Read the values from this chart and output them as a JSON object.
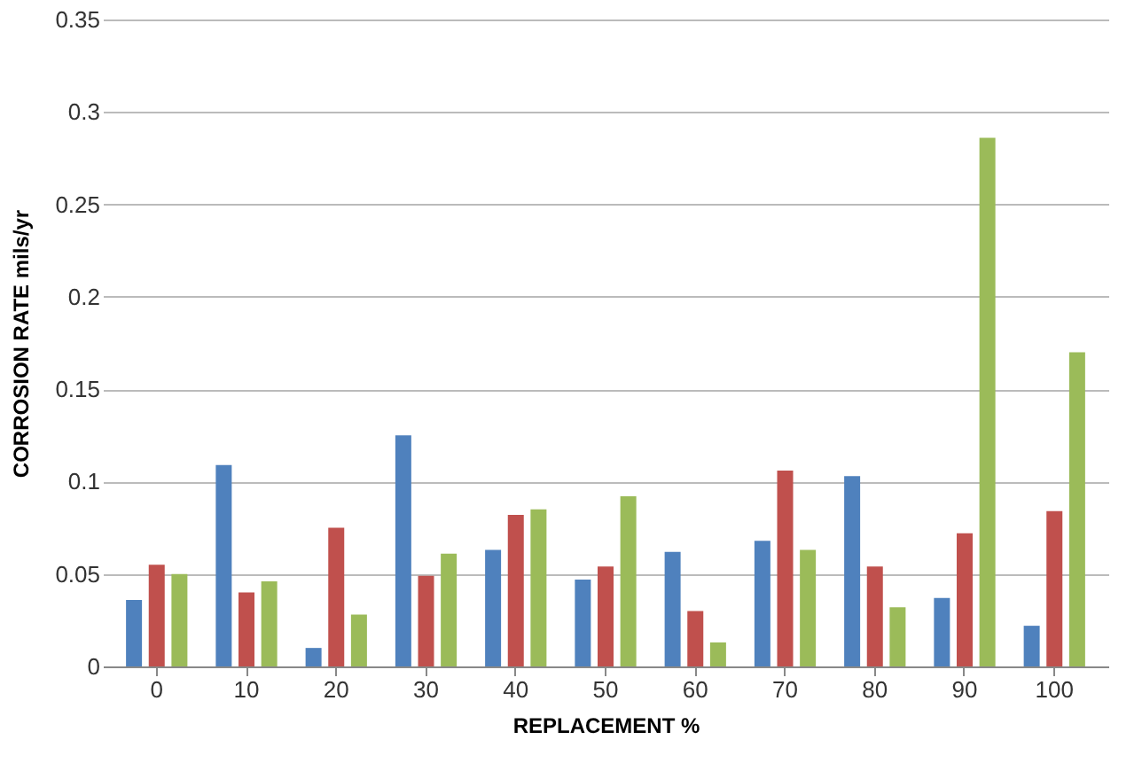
{
  "chart_data": {
    "type": "bar",
    "xlabel": "REPLACEMENT %",
    "ylabel": "CORROSION RATE mils/yr",
    "categories": [
      "0",
      "10",
      "20",
      "30",
      "40",
      "50",
      "60",
      "70",
      "80",
      "90",
      "100"
    ],
    "series": [
      {
        "color": "#4f81bd",
        "values": [
          0.036,
          0.109,
          0.01,
          0.125,
          0.063,
          0.047,
          0.062,
          0.068,
          0.103,
          0.037,
          0.022
        ]
      },
      {
        "color": "#c0504d",
        "values": [
          0.055,
          0.04,
          0.075,
          0.049,
          0.082,
          0.054,
          0.03,
          0.106,
          0.054,
          0.072,
          0.084
        ]
      },
      {
        "color": "#9bbb59",
        "values": [
          0.05,
          0.046,
          0.028,
          0.061,
          0.085,
          0.092,
          0.013,
          0.063,
          0.032,
          0.286,
          0.17
        ]
      }
    ],
    "ylim": [
      0,
      0.35
    ],
    "yticks": [
      0,
      0.05,
      0.1,
      0.15,
      0.2,
      0.25,
      0.3,
      0.35
    ],
    "grid": "y",
    "legend": false
  }
}
